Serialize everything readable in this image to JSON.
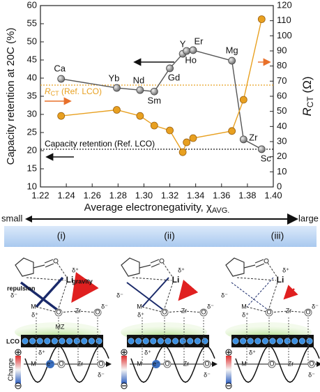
{
  "chart_data": {
    "type": "line",
    "xlabel": "Average electronegativity, χ",
    "xlabel_sub": "AVG.",
    "ylabel": "Capacity retention at 20C (%)",
    "y2label": "R",
    "y2label_sub": "CT",
    "y2label_unit": " (Ω)",
    "xlim": [
      1.22,
      1.4
    ],
    "xticks": [
      1.22,
      1.24,
      1.26,
      1.28,
      {
        "value": 1.3,
        "label": "1.30"
      },
      1.32,
      1.34,
      1.36,
      1.38,
      {
        "value": 1.4,
        "label": "1.40"
      }
    ],
    "ylim": [
      10,
      60
    ],
    "yticks": [
      10,
      15,
      20,
      25,
      30,
      35,
      40,
      45,
      50,
      55,
      60
    ],
    "y2lim": [
      0,
      120
    ],
    "y2ticks": [
      0,
      10,
      20,
      30,
      40,
      50,
      60,
      70,
      80,
      90,
      100,
      110,
      120
    ],
    "x": [
      1.236,
      1.279,
      1.297,
      1.308,
      1.32,
      1.33,
      1.333,
      1.338,
      1.368,
      1.377,
      1.391
    ],
    "series": [
      {
        "color": "#555555",
        "labels": [
          "Ca",
          "Yb",
          "Nd",
          "Sm",
          "Gd",
          "Y",
          "Ho",
          "Er",
          "Mg",
          "Zr",
          "Sc"
        ],
        "values": [
          39.8,
          37.3,
          36.7,
          36.3,
          42.7,
          46.7,
          47.5,
          47.7,
          44.8,
          23.1,
          20.4
        ]
      },
      {
        "color": "#e8a020",
        "axis": "y2",
        "values": [
          47,
          51,
          47,
          40.6,
          37.4,
          23,
          29.5,
          32.3,
          37,
          57.7,
          111
        ]
      }
    ],
    "ref_lines": [
      {
        "label": "R",
        "label_sub": "CT",
        "label_rest": " (Ref. LCO)",
        "axis": "y2",
        "value": 67.4,
        "color": "#e8a020"
      },
      {
        "label": "Capacity retention (Ref. LCO)",
        "axis": "y",
        "value": 20.4,
        "color": "#000000"
      }
    ]
  },
  "scale": {
    "small": "small",
    "large": "large",
    "regimes": [
      "(i)",
      "(ii)",
      "(iii)"
    ]
  },
  "panels": [
    {
      "mol_delta": "δ⁻",
      "li_delta": "δ⁺",
      "li": "Li",
      "gravity": "gravity",
      "repulsion": "repulsion",
      "m": "M",
      "m_delta": "δ⁺",
      "o": "O",
      "zr": "Zr",
      "o2": "O",
      "o_delta": "δ⁻",
      "mz": "MZ",
      "lco": "LCO",
      "plus": "⊕",
      "minus": "⊖",
      "charge": "Charge",
      "c_delta": "δ⁺",
      "c_m": "M",
      "c_e": "e⁻",
      "c_o": "O",
      "c_zr": "Zr",
      "c_o2": "O",
      "c_odelta": "δ⁻"
    },
    {
      "mol_delta": "δ⁻",
      "li_delta": "δ⁺",
      "li": "Li",
      "m": "M",
      "m_delta": "δ⁺",
      "o": "O",
      "zr": "Zr",
      "o2": "O",
      "o_delta": "δ⁻",
      "plus": "⊕",
      "minus": "⊖",
      "c_delta": "δ⁺",
      "c_m": "M",
      "c_e": "e⁻",
      "c_o": "O",
      "c_zr": "Zr",
      "c_o2": "O",
      "c_odelta": "δ⁻"
    },
    {
      "mol_delta": "δ⁻",
      "li_delta": "δ⁺",
      "li": "Li",
      "m": "M",
      "m_delta": "δ⁺",
      "o": "O",
      "zr": "Zr",
      "o2": "O",
      "o_delta": "δ⁻",
      "plus": "⊕",
      "minus": "⊖",
      "c_delta": "δ⁺",
      "c_m": "M",
      "c_o": "O",
      "c_zr": "Zr",
      "c_o2": "O",
      "c_odelta": "δ⁻"
    }
  ]
}
